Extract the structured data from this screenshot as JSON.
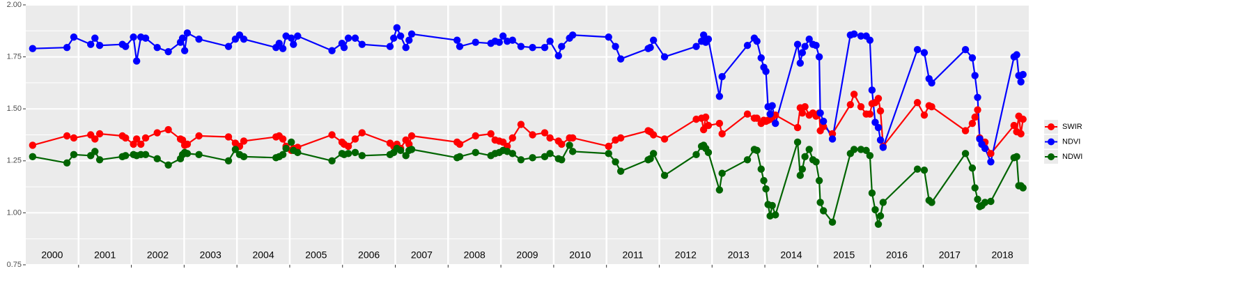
{
  "chart_data": {
    "type": "line",
    "x": [
      2000.13,
      2000.78,
      2000.91,
      2001.23,
      2001.31,
      2001.4,
      2001.83,
      2001.89,
      2002.04,
      2002.1,
      2002.18,
      2002.27,
      2002.49,
      2002.7,
      2002.93,
      2002.97,
      2003.01,
      2003.06,
      2003.28,
      2003.84,
      2003.97,
      2004.05,
      2004.13,
      2004.74,
      2004.8,
      2004.87,
      2004.93,
      2005.03,
      2005.07,
      2005.15,
      2005.8,
      2005.99,
      2006.03,
      2006.11,
      2006.24,
      2006.37,
      2006.9,
      2006.97,
      2007.03,
      2007.1,
      2007.2,
      2007.26,
      2007.31,
      2008.17,
      2008.22,
      2008.52,
      2008.81,
      2008.89,
      2008.97,
      2009.04,
      2009.12,
      2009.22,
      2009.38,
      2009.6,
      2009.83,
      2009.93,
      2010.09,
      2010.15,
      2010.3,
      2010.36,
      2011.04,
      2011.17,
      2011.27,
      2011.79,
      2011.83,
      2011.89,
      2012.1,
      2012.7,
      2012.8,
      2012.84,
      2012.88,
      2012.93,
      2013.14,
      2013.19,
      2013.67,
      2013.8,
      2013.85,
      2013.93,
      2013.98,
      2014.02,
      2014.06,
      2014.1,
      2014.14,
      2014.2,
      2014.62,
      2014.67,
      2014.71,
      2014.76,
      2014.84,
      2014.91,
      2014.97,
      2015.03,
      2015.05,
      2015.11,
      2015.28,
      2015.62,
      2015.69,
      2015.82,
      2015.92,
      2015.99,
      2016.03,
      2016.09,
      2016.15,
      2016.19,
      2016.24,
      2016.89,
      2017.02,
      2017.11,
      2017.16,
      2017.8,
      2017.93,
      2017.98,
      2018.03,
      2018.07,
      2018.11,
      2018.17,
      2018.28,
      2018.72,
      2018.77,
      2018.81,
      2018.85,
      2018.89
    ],
    "series": [
      {
        "name": "SWIR",
        "color": "#ff0000",
        "values": [
          1.325,
          1.37,
          1.36,
          1.375,
          1.355,
          1.38,
          1.37,
          1.36,
          1.33,
          1.355,
          1.33,
          1.36,
          1.385,
          1.4,
          1.355,
          1.35,
          1.325,
          1.33,
          1.37,
          1.365,
          1.335,
          1.32,
          1.345,
          1.365,
          1.37,
          1.355,
          1.32,
          1.3,
          1.31,
          1.315,
          1.375,
          1.34,
          1.33,
          1.32,
          1.355,
          1.385,
          1.335,
          1.32,
          1.33,
          1.31,
          1.35,
          1.33,
          1.37,
          1.34,
          1.33,
          1.37,
          1.38,
          1.35,
          1.345,
          1.34,
          1.32,
          1.36,
          1.425,
          1.375,
          1.385,
          1.36,
          1.345,
          1.33,
          1.36,
          1.36,
          1.32,
          1.35,
          1.36,
          1.395,
          1.39,
          1.375,
          1.355,
          1.45,
          1.455,
          1.4,
          1.46,
          1.42,
          1.43,
          1.38,
          1.475,
          1.455,
          1.455,
          1.43,
          1.445,
          1.44,
          1.445,
          1.45,
          1.46,
          1.47,
          1.41,
          1.505,
          1.48,
          1.51,
          1.47,
          1.48,
          1.465,
          1.48,
          1.395,
          1.415,
          1.38,
          1.52,
          1.57,
          1.51,
          1.475,
          1.475,
          1.525,
          1.53,
          1.55,
          1.49,
          1.32,
          1.53,
          1.47,
          1.515,
          1.51,
          1.395,
          1.43,
          1.46,
          1.495,
          1.36,
          1.33,
          1.34,
          1.285,
          1.42,
          1.39,
          1.465,
          1.38,
          1.45
        ]
      },
      {
        "name": "NDVI",
        "color": "#0000ff",
        "values": [
          1.79,
          1.795,
          1.845,
          1.81,
          1.84,
          1.805,
          1.81,
          1.8,
          1.845,
          1.73,
          1.845,
          1.84,
          1.795,
          1.775,
          1.82,
          1.84,
          1.78,
          1.865,
          1.835,
          1.8,
          1.835,
          1.855,
          1.835,
          1.795,
          1.815,
          1.79,
          1.85,
          1.84,
          1.81,
          1.85,
          1.78,
          1.815,
          1.795,
          1.84,
          1.84,
          1.81,
          1.8,
          1.84,
          1.89,
          1.85,
          1.795,
          1.83,
          1.86,
          1.83,
          1.8,
          1.82,
          1.815,
          1.825,
          1.82,
          1.85,
          1.825,
          1.83,
          1.8,
          1.795,
          1.795,
          1.825,
          1.755,
          1.8,
          1.84,
          1.855,
          1.845,
          1.8,
          1.74,
          1.79,
          1.795,
          1.83,
          1.75,
          1.8,
          1.825,
          1.855,
          1.82,
          1.835,
          1.56,
          1.655,
          1.805,
          1.84,
          1.825,
          1.745,
          1.7,
          1.68,
          1.51,
          1.475,
          1.515,
          1.43,
          1.81,
          1.72,
          1.77,
          1.8,
          1.835,
          1.81,
          1.805,
          1.75,
          1.48,
          1.44,
          1.355,
          1.855,
          1.86,
          1.85,
          1.85,
          1.83,
          1.59,
          1.435,
          1.41,
          1.35,
          1.315,
          1.785,
          1.77,
          1.645,
          1.625,
          1.785,
          1.745,
          1.66,
          1.555,
          1.355,
          1.33,
          1.31,
          1.245,
          1.75,
          1.76,
          1.66,
          1.63,
          1.665
        ]
      },
      {
        "name": "NDWI",
        "color": "#006400",
        "values": [
          1.27,
          1.24,
          1.28,
          1.275,
          1.295,
          1.255,
          1.27,
          1.275,
          1.28,
          1.275,
          1.28,
          1.28,
          1.26,
          1.23,
          1.26,
          1.28,
          1.29,
          1.285,
          1.28,
          1.25,
          1.305,
          1.28,
          1.27,
          1.265,
          1.27,
          1.28,
          1.31,
          1.34,
          1.3,
          1.29,
          1.25,
          1.285,
          1.28,
          1.285,
          1.29,
          1.275,
          1.28,
          1.29,
          1.31,
          1.3,
          1.275,
          1.3,
          1.305,
          1.265,
          1.27,
          1.29,
          1.275,
          1.285,
          1.29,
          1.3,
          1.295,
          1.285,
          1.255,
          1.265,
          1.27,
          1.285,
          1.26,
          1.255,
          1.325,
          1.295,
          1.285,
          1.245,
          1.2,
          1.255,
          1.26,
          1.285,
          1.18,
          1.28,
          1.32,
          1.325,
          1.31,
          1.29,
          1.11,
          1.19,
          1.255,
          1.305,
          1.3,
          1.21,
          1.155,
          1.115,
          1.04,
          0.985,
          1.035,
          0.99,
          1.34,
          1.18,
          1.21,
          1.27,
          1.305,
          1.255,
          1.245,
          1.155,
          1.05,
          1.01,
          0.955,
          1.285,
          1.305,
          1.305,
          1.3,
          1.275,
          1.095,
          1.015,
          0.945,
          0.985,
          1.05,
          1.21,
          1.205,
          1.06,
          1.05,
          1.285,
          1.215,
          1.12,
          1.065,
          1.03,
          1.035,
          1.05,
          1.055,
          1.265,
          1.27,
          1.13,
          1.13,
          1.12
        ]
      }
    ],
    "xlim": [
      2000,
      2019
    ],
    "xticks": [
      2001,
      2002,
      2003,
      2004,
      2005,
      2006,
      2007,
      2008,
      2009,
      2010,
      2011,
      2012,
      2013,
      2014,
      2015,
      2016,
      2017,
      2018
    ],
    "year_labels": [
      "2000",
      "2001",
      "2002",
      "2003",
      "2004",
      "2005",
      "2006",
      "2007",
      "2008",
      "2009",
      "2010",
      "2011",
      "2012",
      "2013",
      "2014",
      "2015",
      "2016",
      "2017",
      "2018"
    ],
    "ylim": [
      0.75,
      2.0
    ],
    "yticks": [
      0.75,
      {
        "value": 1,
        "label": "1.00"
      },
      1.25,
      {
        "value": 1.5,
        "label": "1.50"
      },
      1.75,
      {
        "value": 2,
        "label": "2.00"
      }
    ],
    "grid": true,
    "legend": "right"
  }
}
